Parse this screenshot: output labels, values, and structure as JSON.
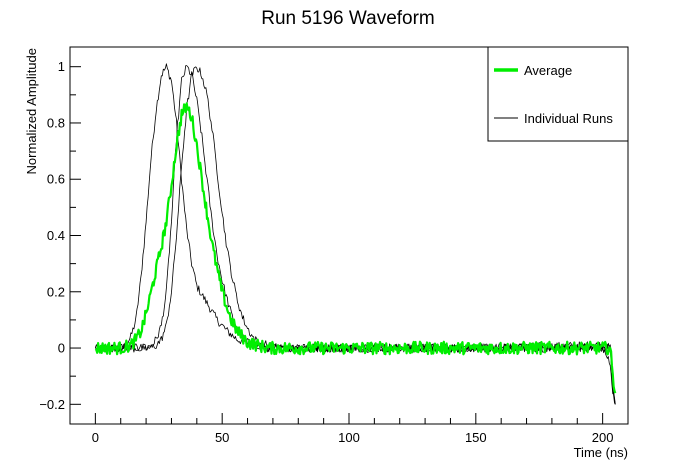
{
  "chart_data": {
    "type": "line",
    "title": "Run 5196 Waveform",
    "xlabel": "Time (ns)",
    "ylabel": "Normalized Amplitude",
    "xlim": [
      -10,
      210
    ],
    "ylim": [
      -0.27,
      1.07
    ],
    "x_ticks": [
      0,
      50,
      100,
      150,
      200
    ],
    "x_tick_labels": [
      "0",
      "50",
      "100",
      "150",
      "200"
    ],
    "y_ticks": [
      -0.2,
      0,
      0.2,
      0.4,
      0.6,
      0.8,
      1
    ],
    "y_tick_labels": [
      "−0.2",
      "0",
      "0.2",
      "0.4",
      "0.6",
      "0.8",
      "1"
    ],
    "grid": false,
    "legend_position": "top-right",
    "series": [
      {
        "name": "Individual Runs",
        "color": "#000000",
        "x": [
          0,
          5,
          10,
          12,
          14,
          16,
          18,
          20,
          22,
          24,
          26,
          28,
          30,
          32,
          34,
          36,
          38,
          40,
          44,
          48,
          52,
          56,
          60,
          64,
          68,
          72,
          80,
          100,
          150,
          200,
          203,
          204,
          205
        ],
        "y": [
          0.0,
          0.0,
          0.0,
          0.01,
          0.04,
          0.1,
          0.25,
          0.45,
          0.68,
          0.85,
          0.97,
          1.0,
          0.95,
          0.8,
          0.6,
          0.42,
          0.3,
          0.22,
          0.16,
          0.1,
          0.06,
          0.03,
          0.02,
          0.01,
          0.0,
          0.0,
          0.0,
          0.0,
          0.0,
          0.01,
          0.0,
          -0.15,
          -0.2
        ]
      },
      {
        "name": "",
        "color": "#000000",
        "x": [
          0,
          10,
          20,
          22,
          24,
          26,
          28,
          30,
          32,
          34,
          36,
          38,
          40,
          42,
          44,
          46,
          48,
          50,
          52,
          54,
          56,
          58,
          60,
          64,
          68,
          72,
          80,
          100,
          150,
          200,
          203,
          204,
          205
        ],
        "y": [
          0.0,
          0.0,
          0.0,
          0.01,
          0.03,
          0.08,
          0.2,
          0.45,
          0.75,
          0.95,
          1.0,
          0.97,
          0.88,
          0.75,
          0.6,
          0.45,
          0.33,
          0.24,
          0.17,
          0.11,
          0.07,
          0.04,
          0.02,
          0.01,
          0.0,
          0.0,
          0.0,
          0.0,
          0.0,
          0.0,
          0.0,
          -0.15,
          -0.2
        ]
      },
      {
        "name": "",
        "color": "#000000",
        "x": [
          0,
          10,
          20,
          22,
          24,
          26,
          28,
          30,
          32,
          34,
          36,
          38,
          40,
          42,
          44,
          46,
          48,
          50,
          52,
          54,
          56,
          58,
          60,
          62,
          64,
          68,
          72,
          80,
          100,
          150,
          200,
          203,
          204,
          205
        ],
        "y": [
          0.0,
          0.0,
          0.0,
          0.0,
          0.01,
          0.03,
          0.08,
          0.2,
          0.4,
          0.65,
          0.85,
          0.97,
          1.0,
          0.97,
          0.9,
          0.78,
          0.63,
          0.48,
          0.35,
          0.25,
          0.17,
          0.11,
          0.07,
          0.04,
          0.02,
          0.01,
          0.0,
          0.0,
          0.0,
          0.0,
          0.0,
          -0.05,
          -0.15,
          -0.2
        ]
      },
      {
        "name": "Average",
        "color": "#00ee00",
        "x": [
          0,
          5,
          10,
          14,
          16,
          18,
          20,
          22,
          24,
          26,
          28,
          30,
          32,
          34,
          36,
          38,
          40,
          42,
          44,
          46,
          48,
          50,
          52,
          54,
          56,
          58,
          60,
          64,
          68,
          72,
          80,
          100,
          150,
          200,
          203,
          204,
          205
        ],
        "y": [
          0.0,
          0.0,
          0.0,
          0.01,
          0.03,
          0.06,
          0.12,
          0.2,
          0.28,
          0.36,
          0.45,
          0.58,
          0.72,
          0.83,
          0.86,
          0.82,
          0.72,
          0.6,
          0.48,
          0.37,
          0.28,
          0.2,
          0.14,
          0.09,
          0.06,
          0.04,
          0.02,
          0.01,
          0.0,
          0.0,
          0.0,
          0.0,
          0.0,
          0.0,
          0.0,
          -0.1,
          -0.16
        ]
      }
    ]
  }
}
